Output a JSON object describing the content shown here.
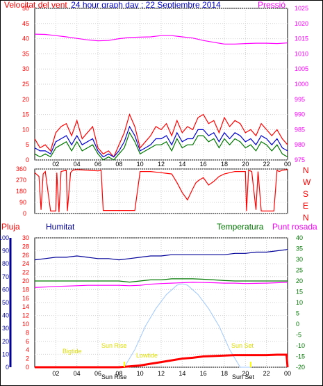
{
  "colors": {
    "wind": "#ff0000",
    "gust_blue": "#0000cc",
    "green": "#007700",
    "pressure": "#ff00ff",
    "humidity": "#000099",
    "rain": "#ff0000",
    "sun": "#a0c8ff",
    "yellow": "#ffff00"
  },
  "header": {
    "left_title": "Velocitat del vent",
    "center_title": "24 hour graph day : 22 Septiembre 2014",
    "right_title": "Pressió"
  },
  "bottom_header": {
    "rain": "Pluja",
    "humidity": "Humitat",
    "temperature": "Temperatura",
    "dewpoint": "Punt rosada"
  },
  "compass": [
    "N",
    "W",
    "S",
    "E",
    "N"
  ],
  "sun_labels": {
    "sunrise": "Sun Rise",
    "sunset": "Sun Set",
    "sunrise_tick": "Sun Rise",
    "sunset_tick": "Sun Set",
    "bigtide": "Bigtide",
    "lowtide": "Lowtide"
  },
  "chart_data": [
    {
      "type": "line",
      "name": "wind_pressure",
      "x_ticks": [
        "02",
        "04",
        "06",
        "08",
        "10",
        "12",
        "14",
        "16",
        "18",
        "20",
        "22",
        "00"
      ],
      "y_left_ticks": [
        0,
        5,
        10,
        15,
        20,
        25,
        30,
        35,
        40,
        45,
        50
      ],
      "y_right_ticks": [
        975,
        980,
        985,
        990,
        995,
        1000,
        1005,
        1010,
        1015,
        1020,
        1025
      ],
      "ylim_left": [
        0,
        50
      ],
      "ylim_right": [
        975,
        1025
      ],
      "xlim": [
        0,
        24
      ],
      "grid": true,
      "pressure": {
        "x": [
          0,
          1,
          2,
          3,
          4,
          5,
          6,
          7,
          8,
          9,
          10,
          11,
          12,
          13,
          14,
          15,
          16,
          17,
          18,
          19,
          20,
          21,
          22,
          23,
          24
        ],
        "y": [
          1016.5,
          1016.4,
          1016.0,
          1015.6,
          1015.1,
          1014.6,
          1014.3,
          1014.4,
          1015.0,
          1015.4,
          1015.5,
          1015.6,
          1016.0,
          1016.0,
          1015.6,
          1015.2,
          1014.4,
          1013.8,
          1013.2,
          1013.2,
          1013.4,
          1013.5,
          1013.5,
          1013.4,
          1013.6
        ]
      },
      "wind_gust": {
        "x": [
          0,
          0.5,
          1,
          1.5,
          2,
          2.5,
          3,
          3.5,
          4,
          4.5,
          5,
          5.5,
          6,
          6.5,
          7,
          7.5,
          8,
          8.5,
          9,
          9.5,
          10,
          10.5,
          11,
          11.5,
          12,
          12.5,
          13,
          13.5,
          14,
          14.5,
          15,
          15.5,
          16,
          16.5,
          17,
          17.5,
          18,
          18.5,
          19,
          19.5,
          20,
          20.5,
          21,
          21.5,
          22,
          22.5,
          23,
          23.5,
          24
        ],
        "y": [
          7,
          4,
          5,
          3,
          9,
          11,
          12,
          8,
          13,
          7,
          9,
          11,
          4,
          2,
          3,
          1,
          5,
          9,
          15,
          11,
          4,
          6,
          8,
          11,
          10,
          12,
          8,
          13,
          9,
          11,
          10,
          14,
          15,
          12,
          13,
          9,
          14,
          11,
          13,
          12,
          9,
          10,
          8,
          12,
          10,
          8,
          10,
          7,
          5
        ]
      },
      "wind_avg": {
        "x": [
          0,
          0.5,
          1,
          1.5,
          2,
          2.5,
          3,
          3.5,
          4,
          4.5,
          5,
          5.5,
          6,
          6.5,
          7,
          7.5,
          8,
          8.5,
          9,
          9.5,
          10,
          10.5,
          11,
          11.5,
          12,
          12.5,
          13,
          13.5,
          14,
          14.5,
          15,
          15.5,
          16,
          16.5,
          17,
          17.5,
          18,
          18.5,
          19,
          19.5,
          20,
          20.5,
          21,
          21.5,
          22,
          22.5,
          23,
          23.5,
          24
        ],
        "y": [
          4,
          3,
          3,
          2,
          6,
          7,
          8,
          5,
          8,
          5,
          6,
          7,
          3,
          1,
          2,
          1,
          3,
          6,
          11,
          8,
          3,
          4,
          5,
          7,
          7,
          8,
          5,
          9,
          6,
          7,
          7,
          10,
          10,
          8,
          9,
          6,
          9,
          7,
          9,
          8,
          6,
          7,
          5,
          8,
          7,
          5,
          7,
          4,
          3
        ]
      },
      "wind_speed": {
        "x": [
          0,
          0.5,
          1,
          1.5,
          2,
          2.5,
          3,
          3.5,
          4,
          4.5,
          5,
          5.5,
          6,
          6.5,
          7,
          7.5,
          8,
          8.5,
          9,
          9.5,
          10,
          10.5,
          11,
          11.5,
          12,
          12.5,
          13,
          13.5,
          14,
          14.5,
          15,
          15.5,
          16,
          16.5,
          17,
          17.5,
          18,
          18.5,
          19,
          19.5,
          20,
          20.5,
          21,
          21.5,
          22,
          22.5,
          23,
          23.5,
          24
        ],
        "y": [
          2,
          1,
          2,
          1,
          4,
          5,
          6,
          3,
          6,
          3,
          4,
          5,
          2,
          0,
          1,
          0,
          2,
          4,
          9,
          6,
          2,
          3,
          4,
          5,
          5,
          6,
          3,
          7,
          4,
          5,
          5,
          8,
          8,
          6,
          7,
          4,
          7,
          5,
          7,
          6,
          4,
          5,
          3,
          6,
          5,
          3,
          5,
          2,
          1
        ]
      }
    },
    {
      "type": "line",
      "name": "wind_direction",
      "y_ticks": [
        0,
        90,
        180,
        270,
        360
      ],
      "ylim": [
        0,
        360
      ],
      "xlim": [
        0,
        24
      ],
      "grid": true,
      "direction": {
        "x": [
          0,
          0.4,
          0.6,
          0.8,
          1,
          1.5,
          2,
          2.1,
          2.3,
          2.5,
          3,
          3.1,
          3.4,
          3.6,
          4,
          5,
          6,
          6.3,
          6.5,
          7,
          7.5,
          7.6,
          8,
          8.5,
          9,
          9.5,
          10,
          11,
          12,
          13,
          13.5,
          14,
          14.5,
          15,
          15.3,
          15.6,
          16,
          16.5,
          17,
          17.5,
          18,
          19,
          20,
          20.1,
          20.3,
          20.6,
          21,
          21.2,
          21.5,
          22,
          22.5,
          22.7,
          23,
          23.2,
          23.5,
          24
        ],
        "y": [
          330,
          300,
          30,
          320,
          340,
          20,
          20,
          330,
          10,
          340,
          350,
          20,
          330,
          350,
          355,
          350,
          345,
          350,
          25,
          25,
          25,
          25,
          25,
          25,
          25,
          25,
          340,
          340,
          330,
          320,
          250,
          170,
          110,
          200,
          250,
          270,
          290,
          230,
          260,
          300,
          320,
          340,
          340,
          20,
          350,
          340,
          30,
          340,
          20,
          20,
          20,
          20,
          350,
          340,
          350,
          355
        ]
      }
    },
    {
      "type": "line",
      "name": "rain_humidity_temperature",
      "y_left_rain_ticks": [
        0,
        2,
        4,
        6,
        8,
        10,
        12,
        14,
        16,
        18,
        20,
        22,
        24,
        26,
        28,
        30
      ],
      "y_left_hum_ticks": [
        0,
        10,
        20,
        30,
        40,
        50,
        60,
        70,
        80,
        90,
        100
      ],
      "y_right_temp_ticks": [
        -20,
        -15,
        -10,
        -5,
        0,
        5,
        10,
        15,
        20,
        25,
        30,
        35,
        40
      ],
      "ylim_left": [
        0,
        100
      ],
      "ylim_right": [
        -20,
        40
      ],
      "xlim": [
        0,
        24
      ],
      "grid": true,
      "humidity": {
        "x": [
          0,
          1,
          2,
          3,
          4,
          5,
          6,
          7,
          8,
          9,
          10,
          11,
          12,
          13,
          14,
          15,
          16,
          17,
          18,
          19,
          20,
          21,
          22,
          23,
          24
        ],
        "y": [
          83,
          84,
          85,
          85,
          86,
          85,
          84,
          84,
          83,
          84,
          85,
          86,
          86,
          87,
          87,
          87,
          87,
          87,
          87,
          88,
          88,
          89,
          89,
          90,
          91
        ]
      },
      "temperature": {
        "x": [
          0,
          1,
          2,
          3,
          4,
          5,
          6,
          7,
          8,
          9,
          10,
          11,
          12,
          13,
          14,
          15,
          16,
          17,
          18,
          19,
          20,
          21,
          22,
          23,
          24
        ],
        "y": [
          20.0,
          20.0,
          20.0,
          20.0,
          20.0,
          20.0,
          20.0,
          20.0,
          20.0,
          19.5,
          20.0,
          20.5,
          20.5,
          21.0,
          21.0,
          21.0,
          20.8,
          20.5,
          20.2,
          20.0,
          20.0,
          20.0,
          20.0,
          20.0,
          20.0
        ]
      },
      "dewpoint": {
        "x": [
          0,
          1,
          2,
          3,
          4,
          5,
          6,
          7,
          8,
          9,
          10,
          11,
          12,
          13,
          14,
          15,
          16,
          17,
          18,
          19,
          20,
          21,
          22,
          23,
          24
        ],
        "y": [
          17.0,
          17.2,
          17.5,
          17.6,
          17.8,
          18.0,
          18.0,
          18.0,
          18.0,
          17.8,
          18.0,
          18.5,
          18.8,
          19.0,
          19.2,
          19.4,
          19.3,
          19.2,
          19.0,
          19.0,
          18.8,
          18.9,
          19.0,
          19.2,
          19.4
        ]
      },
      "rain": {
        "x": [
          0,
          5,
          6,
          7,
          8,
          9,
          10,
          11,
          12,
          13,
          14,
          15,
          16,
          17,
          18,
          19,
          20,
          21,
          22,
          23,
          23.9,
          24
        ],
        "y": [
          0,
          0,
          0,
          0,
          0,
          0.2,
          0.4,
          0.8,
          1.2,
          1.6,
          2.0,
          2.2,
          2.5,
          2.6,
          2.7,
          2.8,
          2.8,
          2.8,
          2.8,
          2.9,
          2.9,
          0
        ]
      },
      "sun_elevation": {
        "x": [
          8.5,
          9.5,
          10.5,
          11.5,
          12.5,
          13.5,
          14,
          14.5,
          15.5,
          16.5,
          17.5,
          18.5,
          19.5,
          20.5
        ],
        "y": [
          0,
          15,
          35,
          50,
          62,
          70,
          71,
          70,
          62,
          50,
          35,
          15,
          0,
          0
        ]
      }
    }
  ]
}
